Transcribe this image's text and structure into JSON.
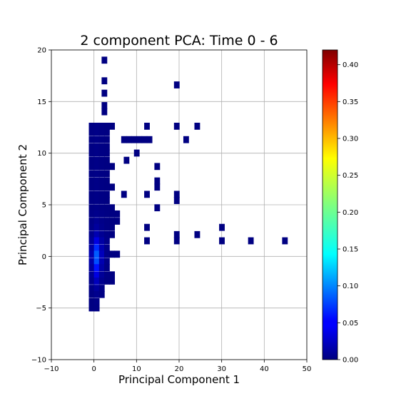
{
  "chart_data": {
    "type": "heatmap",
    "title": "2 component PCA: Time 0 - 6",
    "xlabel": "Principal Component 1",
    "ylabel": "Principal Component 2",
    "xlim": [
      -10,
      50
    ],
    "ylim": [
      -10,
      20
    ],
    "xticks": [
      -10,
      0,
      10,
      20,
      30,
      40,
      50
    ],
    "yticks": [
      -10,
      -5,
      0,
      5,
      10,
      15,
      20
    ],
    "grid": true,
    "colormap": "jet",
    "colorbar": {
      "min": 0.0,
      "max": 0.42,
      "ticks": [
        "0.00",
        "0.05",
        "0.10",
        "0.15",
        "0.20",
        "0.25",
        "0.30",
        "0.35",
        "0.40"
      ]
    },
    "bin_width": 1.25,
    "bin_height": 0.65,
    "cells": [
      [
        1.8,
        18.7,
        0.001
      ],
      [
        1.8,
        16.7,
        0.001
      ],
      [
        1.8,
        15.5,
        0.001
      ],
      [
        1.8,
        14.3,
        0.001
      ],
      [
        1.8,
        13.7,
        0.001
      ],
      [
        18.8,
        16.3,
        0.001
      ],
      [
        -1.2,
        12.3,
        0.002
      ],
      [
        0.0,
        12.3,
        0.003
      ],
      [
        1.2,
        12.3,
        0.002
      ],
      [
        2.4,
        12.3,
        0.001
      ],
      [
        3.6,
        12.3,
        0.001
      ],
      [
        11.8,
        12.3,
        0.001
      ],
      [
        18.8,
        12.3,
        0.001
      ],
      [
        23.6,
        12.3,
        0.001
      ],
      [
        -1.2,
        11.7,
        0.002
      ],
      [
        0.0,
        11.7,
        0.003
      ],
      [
        1.2,
        11.7,
        0.002
      ],
      [
        2.4,
        11.7,
        0.001
      ],
      [
        -1.2,
        11.0,
        0.002
      ],
      [
        0.0,
        11.0,
        0.003
      ],
      [
        1.2,
        11.0,
        0.002
      ],
      [
        2.4,
        11.0,
        0.001
      ],
      [
        6.4,
        11.0,
        0.001
      ],
      [
        7.6,
        11.0,
        0.001
      ],
      [
        8.8,
        11.0,
        0.001
      ],
      [
        10.0,
        11.0,
        0.001
      ],
      [
        11.2,
        11.0,
        0.001
      ],
      [
        12.4,
        11.0,
        0.001
      ],
      [
        21.0,
        11.0,
        0.001
      ],
      [
        -1.2,
        10.3,
        0.002
      ],
      [
        0.0,
        10.3,
        0.003
      ],
      [
        1.2,
        10.3,
        0.002
      ],
      [
        2.4,
        10.3,
        0.001
      ],
      [
        -1.2,
        9.7,
        0.002
      ],
      [
        0.0,
        9.7,
        0.003
      ],
      [
        1.2,
        9.7,
        0.002
      ],
      [
        2.4,
        9.7,
        0.001
      ],
      [
        9.4,
        9.7,
        0.001
      ],
      [
        -1.2,
        9.0,
        0.002
      ],
      [
        0.0,
        9.0,
        0.003
      ],
      [
        1.2,
        9.0,
        0.002
      ],
      [
        2.4,
        9.0,
        0.001
      ],
      [
        7.0,
        9.0,
        0.001
      ],
      [
        -1.2,
        8.4,
        0.002
      ],
      [
        0.0,
        8.4,
        0.003
      ],
      [
        1.2,
        8.4,
        0.002
      ],
      [
        2.4,
        8.4,
        0.001
      ],
      [
        3.6,
        8.4,
        0.001
      ],
      [
        14.2,
        8.4,
        0.001
      ],
      [
        -1.2,
        7.7,
        0.002
      ],
      [
        0.0,
        7.7,
        0.003
      ],
      [
        1.2,
        7.7,
        0.002
      ],
      [
        2.4,
        7.7,
        0.001
      ],
      [
        -1.2,
        7.0,
        0.002
      ],
      [
        0.0,
        7.0,
        0.003
      ],
      [
        1.2,
        7.0,
        0.002
      ],
      [
        2.4,
        7.0,
        0.001
      ],
      [
        14.2,
        7.0,
        0.001
      ],
      [
        -1.2,
        6.4,
        0.002
      ],
      [
        0.0,
        6.4,
        0.003
      ],
      [
        1.2,
        6.4,
        0.002
      ],
      [
        2.4,
        6.4,
        0.001
      ],
      [
        3.6,
        6.4,
        0.001
      ],
      [
        14.2,
        6.4,
        0.001
      ],
      [
        -1.2,
        5.7,
        0.002
      ],
      [
        0.0,
        5.7,
        0.003
      ],
      [
        1.2,
        5.7,
        0.002
      ],
      [
        2.4,
        5.7,
        0.001
      ],
      [
        6.4,
        5.7,
        0.001
      ],
      [
        11.8,
        5.7,
        0.001
      ],
      [
        18.8,
        5.7,
        0.001
      ],
      [
        -1.2,
        5.1,
        0.002
      ],
      [
        0.0,
        5.1,
        0.003
      ],
      [
        1.2,
        5.1,
        0.002
      ],
      [
        2.4,
        5.1,
        0.001
      ],
      [
        18.8,
        5.1,
        0.001
      ],
      [
        -1.2,
        4.4,
        0.002
      ],
      [
        0.0,
        4.4,
        0.003
      ],
      [
        1.2,
        4.4,
        0.002
      ],
      [
        2.4,
        4.4,
        0.001
      ],
      [
        3.6,
        4.4,
        0.001
      ],
      [
        14.2,
        4.4,
        0.001
      ],
      [
        -1.2,
        3.8,
        0.003
      ],
      [
        0.0,
        3.8,
        0.005
      ],
      [
        1.2,
        3.8,
        0.003
      ],
      [
        2.4,
        3.8,
        0.002
      ],
      [
        3.6,
        3.8,
        0.001
      ],
      [
        4.8,
        3.8,
        0.001
      ],
      [
        -1.2,
        3.1,
        0.003
      ],
      [
        0.0,
        3.1,
        0.008
      ],
      [
        1.2,
        3.1,
        0.004
      ],
      [
        2.4,
        3.1,
        0.002
      ],
      [
        3.6,
        3.1,
        0.001
      ],
      [
        4.8,
        3.1,
        0.001
      ],
      [
        -1.2,
        2.5,
        0.004
      ],
      [
        0.0,
        2.5,
        0.012
      ],
      [
        1.2,
        2.5,
        0.005
      ],
      [
        2.4,
        2.5,
        0.002
      ],
      [
        3.6,
        2.5,
        0.001
      ],
      [
        11.8,
        2.5,
        0.001
      ],
      [
        29.4,
        2.5,
        0.001
      ],
      [
        -1.2,
        1.8,
        0.006
      ],
      [
        0.0,
        1.8,
        0.02
      ],
      [
        1.2,
        1.8,
        0.008
      ],
      [
        2.4,
        1.8,
        0.003
      ],
      [
        3.6,
        1.8,
        0.001
      ],
      [
        18.8,
        1.8,
        0.001
      ],
      [
        23.6,
        1.8,
        0.001
      ],
      [
        -1.2,
        1.2,
        0.01
      ],
      [
        0.0,
        1.2,
        0.04
      ],
      [
        1.2,
        1.2,
        0.015
      ],
      [
        2.4,
        1.2,
        0.004
      ],
      [
        11.8,
        1.2,
        0.001
      ],
      [
        18.8,
        1.2,
        0.001
      ],
      [
        29.4,
        1.2,
        0.001
      ],
      [
        36.2,
        1.2,
        0.001
      ],
      [
        44.2,
        1.2,
        0.001
      ],
      [
        -1.2,
        0.5,
        0.015
      ],
      [
        0.0,
        0.5,
        0.07
      ],
      [
        1.2,
        0.5,
        0.02
      ],
      [
        2.4,
        0.5,
        0.004
      ],
      [
        -1.2,
        -0.1,
        0.02
      ],
      [
        0.0,
        -0.1,
        0.09
      ],
      [
        1.2,
        -0.1,
        0.025
      ],
      [
        2.4,
        -0.1,
        0.004
      ],
      [
        3.6,
        -0.1,
        0.001
      ],
      [
        4.8,
        -0.1,
        0.001
      ],
      [
        -1.2,
        -0.8,
        0.018
      ],
      [
        0.0,
        -0.8,
        0.085
      ],
      [
        1.2,
        -0.8,
        0.02
      ],
      [
        2.4,
        -0.8,
        0.003
      ],
      [
        -1.2,
        -1.4,
        0.012
      ],
      [
        0.0,
        -1.4,
        0.06
      ],
      [
        1.2,
        -1.4,
        0.015
      ],
      [
        2.4,
        -1.4,
        0.002
      ],
      [
        -1.2,
        -2.1,
        0.008
      ],
      [
        0.0,
        -2.1,
        0.04
      ],
      [
        1.2,
        -2.1,
        0.01
      ],
      [
        2.4,
        -2.1,
        0.002
      ],
      [
        3.6,
        -2.1,
        0.001
      ],
      [
        -1.2,
        -2.7,
        0.005
      ],
      [
        0.0,
        -2.7,
        0.025
      ],
      [
        1.2,
        -2.7,
        0.006
      ],
      [
        2.4,
        -2.7,
        0.001
      ],
      [
        3.6,
        -2.7,
        0.001
      ],
      [
        -1.2,
        -3.4,
        0.003
      ],
      [
        0.0,
        -3.4,
        0.012
      ],
      [
        1.2,
        -3.4,
        0.003
      ],
      [
        -1.2,
        -4.0,
        0.002
      ],
      [
        0.0,
        -4.0,
        0.006
      ],
      [
        1.2,
        -4.0,
        0.002
      ],
      [
        -1.2,
        -4.7,
        0.001
      ],
      [
        0.0,
        -4.7,
        0.003
      ],
      [
        -1.2,
        -5.3,
        0.001
      ],
      [
        0.0,
        -5.3,
        0.002
      ]
    ]
  }
}
